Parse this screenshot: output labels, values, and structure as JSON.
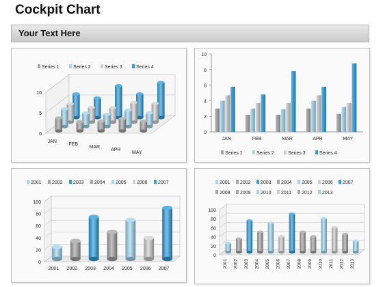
{
  "page": {
    "title": "Cockpit Chart",
    "banner": "Your Text Here"
  },
  "colors": {
    "gray": "#a6a6a6",
    "lightblue": "#9fd7f2",
    "lightgray": "#d0d0d0",
    "blue": "#2f9fe0",
    "axis": "#777777",
    "grid": "#cccccc"
  },
  "chart_data": [
    {
      "type": "bar",
      "variant": "3d-perspective",
      "categories": [
        "JAN",
        "FEB",
        "MAR",
        "APR",
        "MAY"
      ],
      "series": [
        {
          "name": "Series 1",
          "values": [
            3.2,
            2.3,
            2.4,
            3.0,
            2.4
          ]
        },
        {
          "name": "Series 2",
          "values": [
            4.3,
            3.3,
            3.0,
            4.0,
            3.3
          ]
        },
        {
          "name": "Series 3",
          "values": [
            4.5,
            3.6,
            3.5,
            4.8,
            4.6
          ]
        },
        {
          "name": "Series 4",
          "values": [
            5.8,
            4.8,
            7.8,
            5.8,
            8.6
          ]
        }
      ],
      "yticks": [
        "0",
        "5",
        "10"
      ],
      "ylim": [
        0,
        10
      ],
      "legend": "top"
    },
    {
      "type": "bar",
      "categories": [
        "JAN",
        "FEB",
        "MAR",
        "APR",
        "MAY"
      ],
      "series": [
        {
          "name": "Series 1",
          "values": [
            3.0,
            2.2,
            2.2,
            3.0,
            2.3
          ]
        },
        {
          "name": "Series 2",
          "values": [
            4.0,
            3.0,
            2.9,
            4.0,
            3.2
          ]
        },
        {
          "name": "Series 3",
          "values": [
            4.7,
            3.7,
            3.7,
            4.7,
            3.7
          ]
        },
        {
          "name": "Series 4",
          "values": [
            5.8,
            4.8,
            7.8,
            5.8,
            8.8
          ]
        }
      ],
      "yticks": [
        "0",
        "2",
        "4",
        "6",
        "8",
        "10"
      ],
      "ylim": [
        0,
        10
      ],
      "legend": "bottom"
    },
    {
      "type": "bar",
      "variant": "3d-cylinder",
      "categories": [
        "2001",
        "2002",
        "2003",
        "2004",
        "2005",
        "2006",
        "2007"
      ],
      "values": [
        20,
        30,
        70,
        45,
        65,
        35,
        85
      ],
      "yticks": [
        "0",
        "20",
        "40",
        "60",
        "80",
        "100"
      ],
      "ylim": [
        0,
        100
      ],
      "legend": "top"
    },
    {
      "type": "bar",
      "variant": "3d-cylinder",
      "categories": [
        "2001",
        "2002",
        "2003",
        "2004",
        "2005",
        "2006",
        "2007",
        "2008",
        "2009",
        "2010",
        "2011",
        "2012",
        "2013"
      ],
      "values": [
        20,
        30,
        70,
        45,
        65,
        35,
        85,
        45,
        35,
        75,
        55,
        40,
        25
      ],
      "yticks": [
        "0",
        "20",
        "40",
        "60",
        "80",
        "100"
      ],
      "ylim": [
        0,
        100
      ],
      "legend": "top"
    }
  ]
}
